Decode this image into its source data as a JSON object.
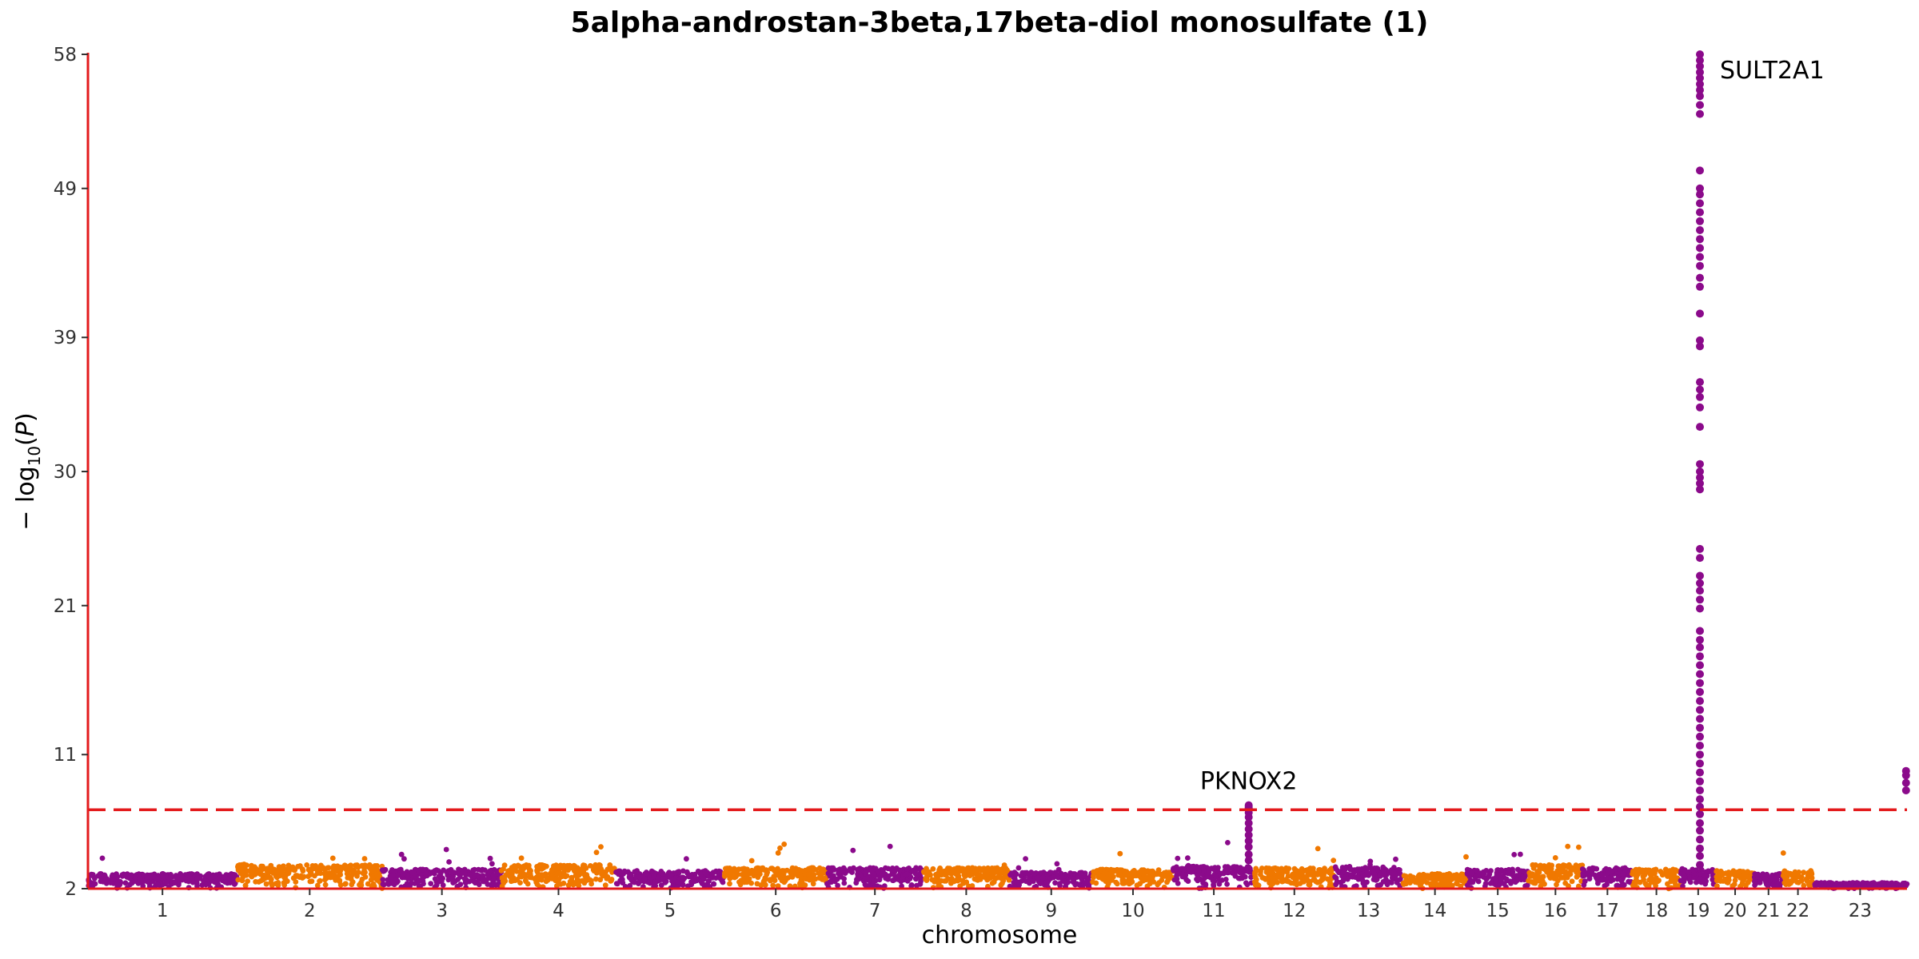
{
  "chart_data": {
    "type": "scatter",
    "title": "5alpha-androstan-3beta,17beta-diol monosulfate (1)",
    "xlabel": "chromosome",
    "ylabel_parts": [
      "− log",
      "10",
      "(",
      "P",
      ")"
    ],
    "ylim": [
      2,
      58
    ],
    "y_ticks": [
      2,
      11,
      21,
      30,
      39,
      49,
      58
    ],
    "significance_threshold": 7.3,
    "colors": {
      "odd": "#8b0a8b",
      "even": "#f07800",
      "axis": "#e31a1c",
      "threshold": "#e31a1c"
    },
    "chromosomes": [
      {
        "label": "1",
        "size": 248,
        "base": 3.0,
        "color": "odd"
      },
      {
        "label": "2",
        "size": 242,
        "base": 3.6,
        "color": "even"
      },
      {
        "label": "3",
        "size": 198,
        "base": 3.3,
        "color": "odd"
      },
      {
        "label": "4",
        "size": 190,
        "base": 3.6,
        "color": "even"
      },
      {
        "label": "5",
        "size": 181,
        "base": 3.2,
        "color": "odd"
      },
      {
        "label": "6",
        "size": 171,
        "base": 3.4,
        "color": "even"
      },
      {
        "label": "7",
        "size": 159,
        "base": 3.4,
        "color": "odd"
      },
      {
        "label": "8",
        "size": 145,
        "base": 3.4,
        "color": "even"
      },
      {
        "label": "9",
        "size": 138,
        "base": 3.1,
        "color": "odd"
      },
      {
        "label": "10",
        "size": 134,
        "base": 3.3,
        "color": "even"
      },
      {
        "label": "11",
        "size": 135,
        "base": 3.5,
        "color": "odd"
      },
      {
        "label": "12",
        "size": 133,
        "base": 3.4,
        "color": "even"
      },
      {
        "label": "13",
        "size": 114,
        "base": 3.5,
        "color": "odd"
      },
      {
        "label": "14",
        "size": 107,
        "base": 3.0,
        "color": "even"
      },
      {
        "label": "15",
        "size": 102,
        "base": 3.3,
        "color": "odd"
      },
      {
        "label": "16",
        "size": 90,
        "base": 3.6,
        "color": "even"
      },
      {
        "label": "17",
        "size": 83,
        "base": 3.4,
        "color": "odd"
      },
      {
        "label": "18",
        "size": 80,
        "base": 3.3,
        "color": "even"
      },
      {
        "label": "19",
        "size": 59,
        "base": 3.3,
        "color": "odd"
      },
      {
        "label": "20",
        "size": 64,
        "base": 3.2,
        "color": "even"
      },
      {
        "label": "21",
        "size": 47,
        "base": 3.0,
        "color": "odd"
      },
      {
        "label": "22",
        "size": 51,
        "base": 3.2,
        "color": "even"
      },
      {
        "label": "23",
        "size": 156,
        "base": 2.4,
        "color": "odd"
      }
    ],
    "peaks": [
      {
        "chromosome": "11",
        "position": 0.93,
        "label": "PKNOX2",
        "values": [
          7.6,
          7.5,
          7.4,
          7.3,
          7.1,
          6.8,
          6.4,
          6.0,
          5.6,
          5.2,
          4.8,
          4.3,
          3.9
        ]
      },
      {
        "chromosome": "19",
        "position": 0.55,
        "label": "SULT2A1",
        "values": [
          58,
          57.6,
          57.2,
          56.8,
          56.4,
          56,
          55.6,
          55.2,
          54.6,
          54,
          50.2,
          49,
          48.6,
          48,
          47.4,
          46.8,
          46.2,
          45.6,
          45,
          44.4,
          43.8,
          43,
          42.4,
          40.6,
          38.8,
          38.4,
          36,
          35.5,
          35,
          34.3,
          33,
          30.5,
          30,
          29.6,
          29.2,
          28.8,
          24.8,
          24.2,
          23,
          22.5,
          22,
          21.4,
          20.8,
          19.3,
          18.7,
          18.2,
          17.6,
          17,
          16.4,
          15.8,
          15.2,
          14.6,
          14,
          13.4,
          12.8,
          12.2,
          11.6,
          11,
          10.4,
          9.8,
          9.2,
          8.6,
          8,
          7.5,
          7,
          6.4,
          5.9,
          5.3,
          4.7,
          4.2,
          3.6
        ]
      },
      {
        "chromosome": "23",
        "position": 0.99,
        "values": [
          9.9,
          9.6,
          9.1,
          8.6
        ]
      }
    ]
  }
}
